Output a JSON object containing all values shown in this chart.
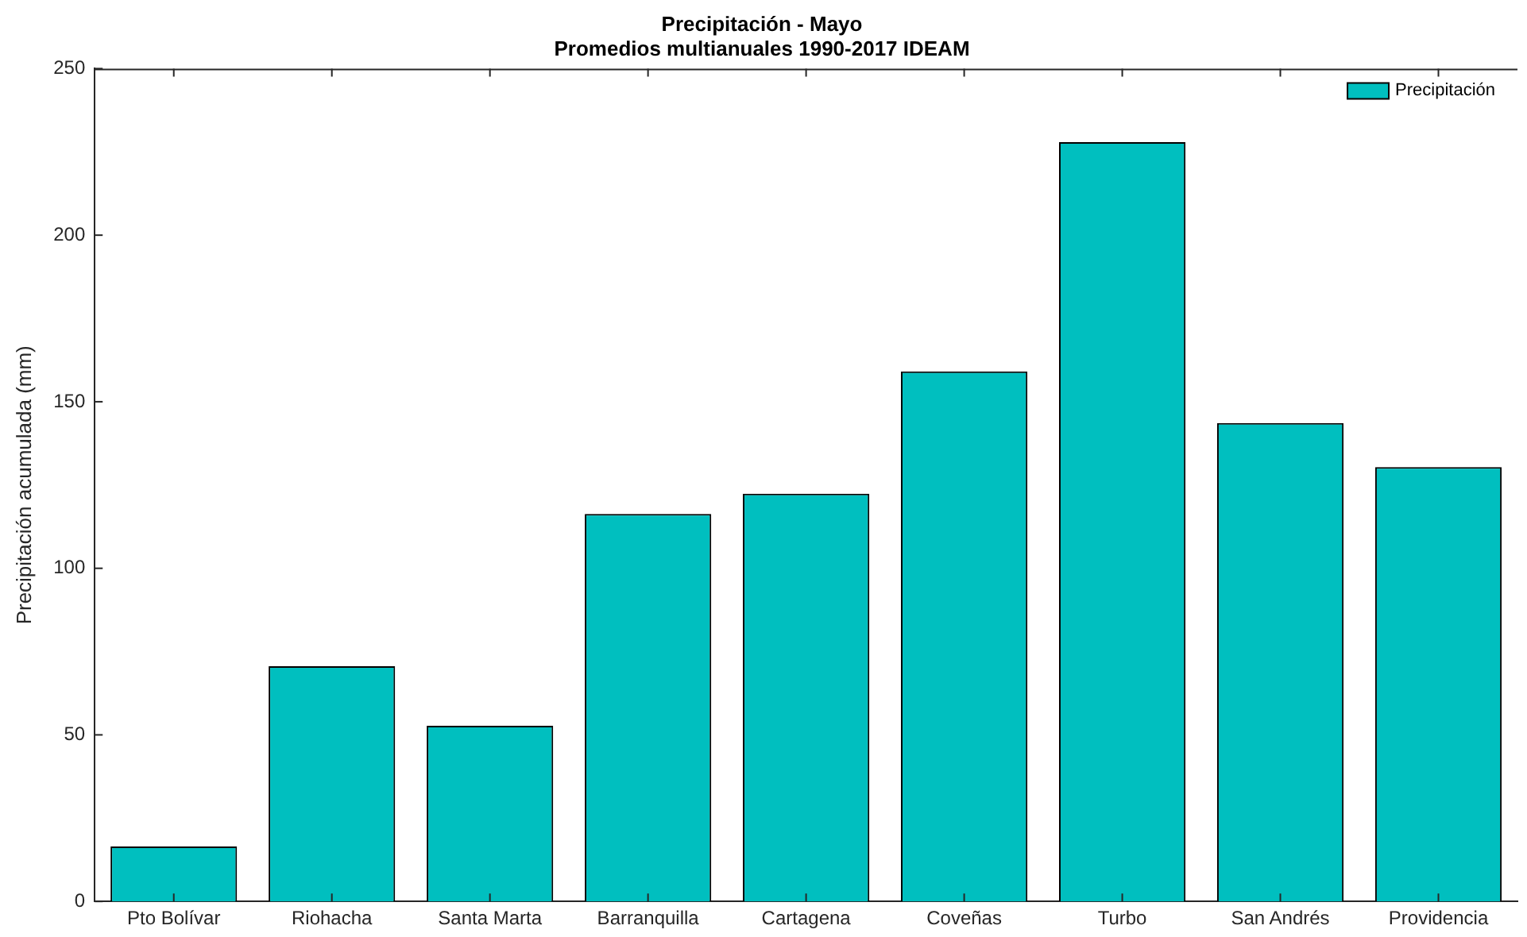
{
  "chart_data": {
    "type": "bar",
    "title": "Precipitación - Mayo",
    "subtitle": "Promedios multianuales 1990-2017 IDEAM",
    "ylabel": "Precipitación acumulada (mm)",
    "categories": [
      "Pto Bolívar",
      "Riohacha",
      "Santa Marta",
      "Barranquilla",
      "Cartagena",
      "Coveñas",
      "Turbo",
      "San Andrés",
      "Providencia"
    ],
    "series": [
      {
        "name": "Precipitación",
        "color": "#00bfbf",
        "values": [
          16.5,
          70.6,
          52.7,
          116.3,
          122.4,
          159.1,
          227.9,
          143.6,
          130.4
        ]
      }
    ],
    "ylim": [
      0,
      250
    ],
    "yticks": [
      0,
      50,
      100,
      150,
      200,
      250
    ],
    "grid": false,
    "legend": "top right"
  }
}
